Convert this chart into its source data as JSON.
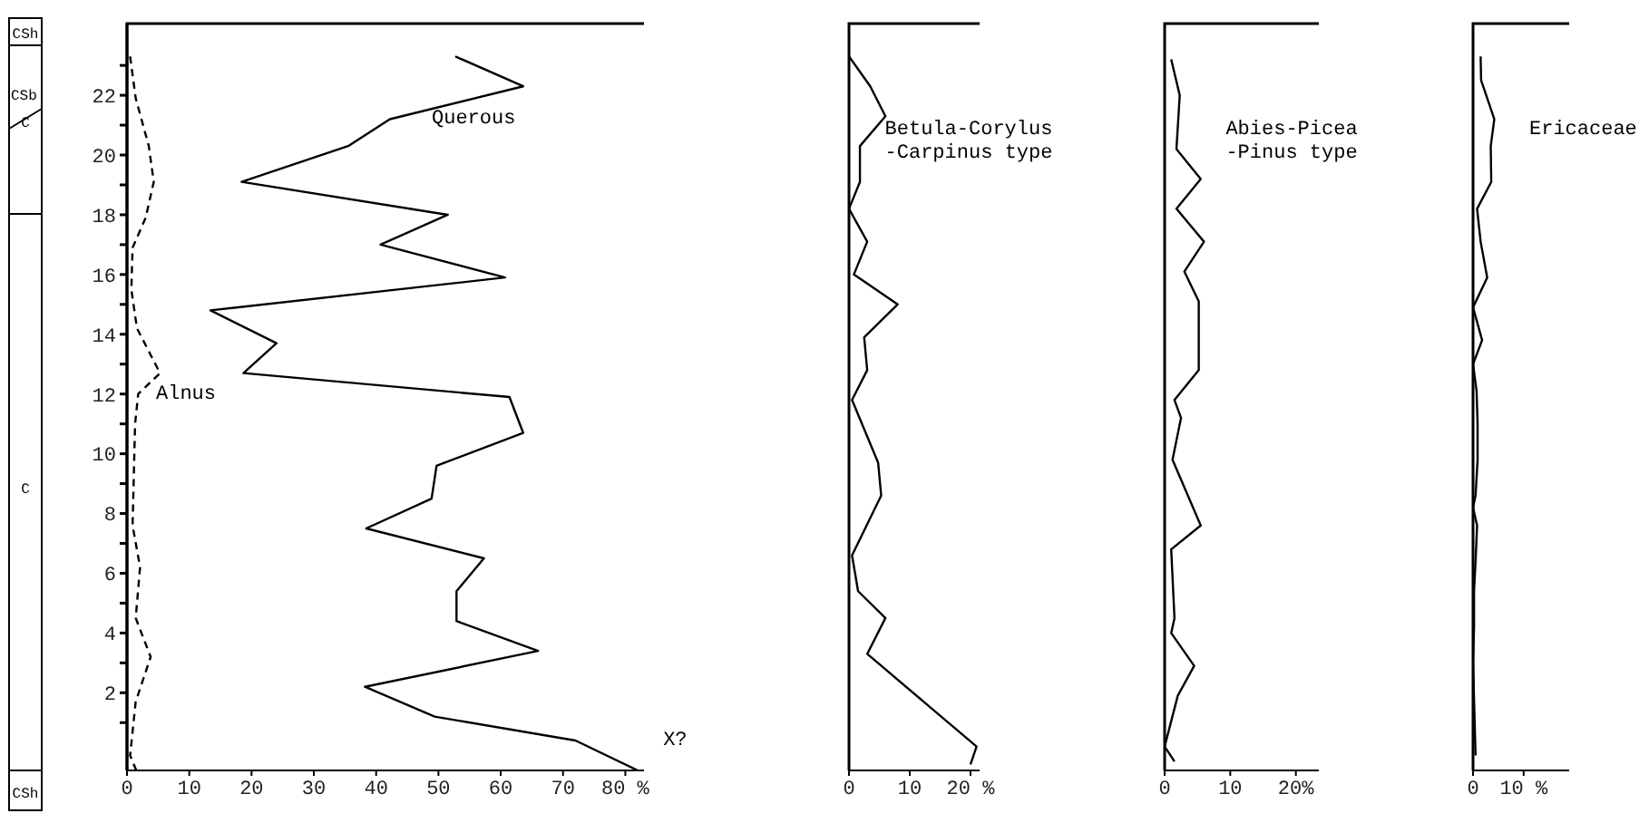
{
  "chart_data": [
    {
      "type": "line",
      "xlim": [
        0,
        83
      ],
      "ylim": [
        -0.6,
        24.4
      ],
      "marker": "none",
      "xticks": [
        0,
        10,
        20,
        30,
        40,
        50,
        60,
        70,
        {
          "value": 80,
          "label": "80 %"
        }
      ],
      "yticks": [
        {
          "value": 1,
          "label": null
        },
        2,
        {
          "value": 3,
          "label": null
        },
        4,
        {
          "value": 5,
          "label": null
        },
        6,
        {
          "value": 7,
          "label": null
        },
        8,
        {
          "value": 9,
          "label": null
        },
        10,
        {
          "value": 11,
          "label": null
        },
        12,
        {
          "value": 13,
          "label": null
        },
        14,
        {
          "value": 15,
          "label": null
        },
        16,
        {
          "value": 17,
          "label": null
        },
        18,
        {
          "value": 19,
          "label": null
        },
        20,
        {
          "value": 21,
          "label": null
        },
        22,
        {
          "value": 23,
          "label": null
        }
      ],
      "series": [
        {
          "name": "Querous",
          "color": "#000000",
          "line_style": "solid",
          "x": [
            52.7,
            63.6,
            42.2,
            35.5,
            18.4,
            51.5,
            40.7,
            60.7,
            13.4,
            24,
            18.7,
            61.4,
            63.6,
            49.7,
            48.9,
            38.4,
            57.3,
            52.9,
            52.9,
            66,
            38.2,
            49.4,
            72,
            82
          ],
          "values": [
            23.3,
            22.3,
            21.2,
            20.3,
            19.1,
            18.0,
            17.0,
            15.9,
            14.8,
            13.7,
            12.7,
            11.9,
            10.7,
            9.6,
            8.5,
            7.5,
            6.5,
            5.4,
            4.4,
            3.4,
            2.2,
            1.2,
            0.4,
            -0.6
          ]
        },
        {
          "name": "Alnus",
          "color": "#000000",
          "line_style": "dashed",
          "x": [
            0.5,
            1.4,
            3.5,
            4.3,
            3,
            0.9,
            0.7,
            1.6,
            5.3,
            1.8,
            1.3,
            0.9,
            2.1,
            1.4,
            3.8,
            1.4,
            0.5,
            1.5
          ],
          "values": [
            23.3,
            21.9,
            20.3,
            19.1,
            17.9,
            16.9,
            15.5,
            14.2,
            12.7,
            12.0,
            11.0,
            7.6,
            6.2,
            4.5,
            3.2,
            1.7,
            -0.1,
            -0.6
          ]
        }
      ],
      "annotations": [
        "CSh",
        "CSb",
        "C",
        "C",
        "CSh",
        {
          "text": "X?",
          "x": 82,
          "y": -0.6
        }
      ]
    },
    {
      "type": "line",
      "xlim": [
        0,
        21.5
      ],
      "ylim": [
        -0.6,
        24.4
      ],
      "marker": "none",
      "tick_labels": "x",
      "xticks": [
        0,
        10,
        {
          "value": 20,
          "label": "20 %"
        }
      ],
      "series": [
        {
          "name": "Betula-Corylus -Carpinus type",
          "color": "#000000",
          "line_style": "solid",
          "x": [
            0,
            3.5,
            6,
            1.8,
            1.8,
            0,
            3,
            0.8,
            8,
            2.5,
            3,
            0.5,
            4.8,
            5.3,
            0.5,
            1.5,
            6,
            3,
            21,
            20
          ],
          "values": [
            23.3,
            22.3,
            21.3,
            20.3,
            19.1,
            18.2,
            17.1,
            16.0,
            15.0,
            13.9,
            12.8,
            11.8,
            9.7,
            8.6,
            6.6,
            5.4,
            4.5,
            3.3,
            0.2,
            -0.4
          ]
        }
      ]
    },
    {
      "type": "line",
      "xlim": [
        0,
        23.5
      ],
      "ylim": [
        -0.6,
        24.4
      ],
      "marker": "none",
      "tick_labels": "x",
      "xticks": [
        0,
        10,
        {
          "value": 20,
          "label": "20%"
        }
      ],
      "series": [
        {
          "name": "Abies-Picea -Pinus type",
          "color": "#000000",
          "line_style": "solid",
          "x": [
            1,
            2.3,
            1.8,
            5.5,
            1.8,
            6,
            3,
            5.2,
            5.2,
            1.5,
            2.5,
            1.2,
            5.5,
            1,
            1.5,
            1,
            4.5,
            2,
            0,
            1.5
          ],
          "values": [
            23.2,
            22.0,
            20.2,
            19.2,
            18.2,
            17.1,
            16.1,
            15.1,
            12.8,
            11.8,
            11.2,
            9.8,
            7.6,
            6.8,
            4.5,
            4.0,
            2.9,
            1.9,
            0.2,
            -0.3
          ]
        }
      ]
    },
    {
      "type": "line",
      "xlim": [
        0,
        19
      ],
      "ylim": [
        -0.6,
        24.4
      ],
      "marker": "none",
      "tick_labels": "x",
      "xticks": [
        0,
        {
          "value": 10,
          "label": "10 %"
        }
      ],
      "series": [
        {
          "name": "Ericaceae",
          "color": "#000000",
          "line_style": "solid",
          "x": [
            1.5,
            1.6,
            4.2,
            3.5,
            3.6,
            0.8,
            1.5,
            2.8,
            0,
            1.8,
            0,
            0.7,
            0.9,
            0.9,
            0.5,
            0,
            0.8,
            0.5,
            0.2,
            0.2,
            0,
            0.5
          ],
          "values": [
            23.3,
            22.5,
            21.2,
            20.3,
            19.1,
            18.2,
            17.1,
            15.9,
            14.9,
            13.8,
            13.0,
            12.1,
            11.0,
            9.8,
            8.6,
            8.2,
            7.6,
            6.4,
            5.4,
            4.2,
            3.0,
            -0.1
          ]
        }
      ]
    }
  ]
}
